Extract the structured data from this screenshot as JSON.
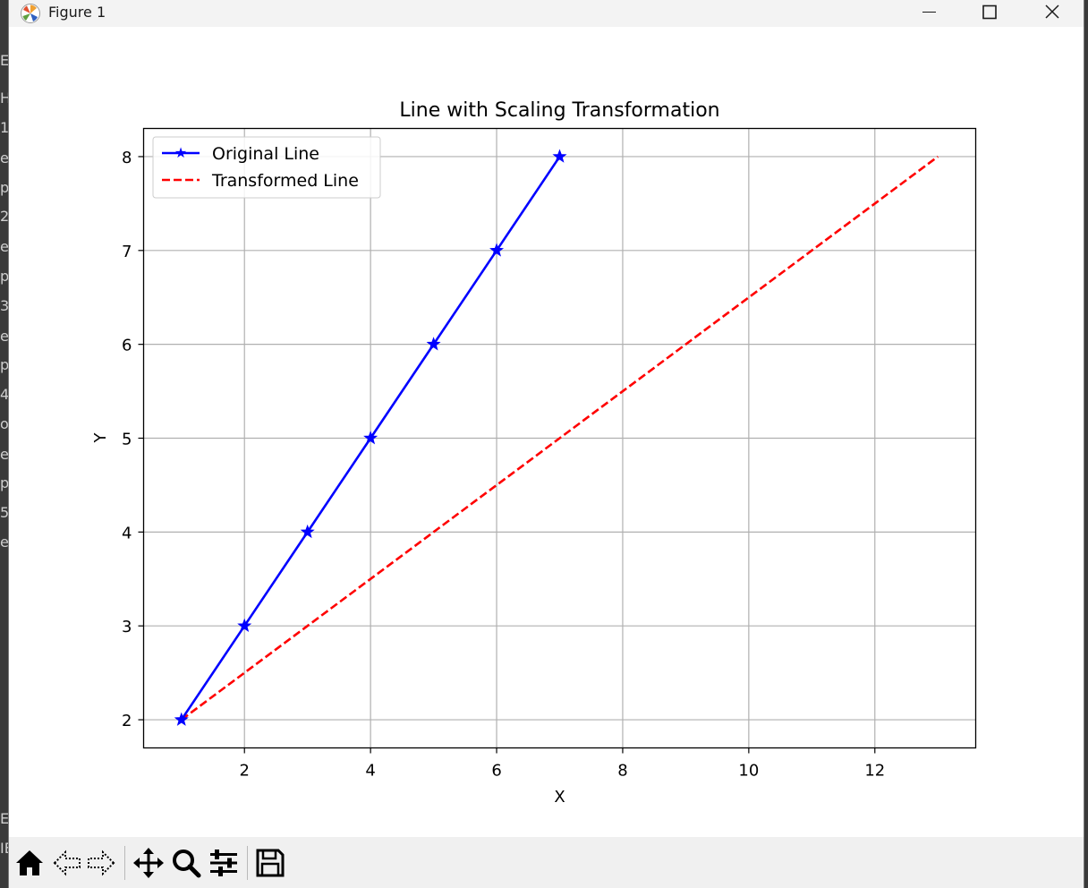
{
  "window": {
    "title": "Figure 1",
    "icon": "matplotlib-logo-icon",
    "controls": [
      "minimize-icon",
      "maximize-icon",
      "close-icon"
    ]
  },
  "background_fragments": [
    "ER",
    "H",
    "1",
    "e",
    "p",
    "2",
    "e",
    "p",
    "3",
    "e",
    "p",
    "4",
    "o",
    "e",
    "p",
    "5",
    "e",
    "E",
    "IE"
  ],
  "toolbar": {
    "buttons": [
      "home-icon",
      "back-arrow-icon",
      "forward-arrow-icon",
      "pan-move-icon",
      "zoom-magnifier-icon",
      "configure-subplots-icon",
      "save-disk-icon"
    ]
  },
  "chart_data": {
    "type": "line",
    "title": "Line with Scaling Transformation",
    "xlabel": "X",
    "ylabel": "Y",
    "xlim": [
      0.4,
      13.6
    ],
    "ylim": [
      1.7,
      8.3
    ],
    "xticks": [
      2,
      4,
      6,
      8,
      10,
      12
    ],
    "yticks": [
      2,
      3,
      4,
      5,
      6,
      7,
      8
    ],
    "grid": true,
    "legend_position": "upper left",
    "series": [
      {
        "name": "Original Line",
        "color": "#0000ff",
        "linestyle": "solid",
        "marker": "star",
        "x": [
          1,
          2,
          3,
          4,
          5,
          6,
          7
        ],
        "y": [
          2,
          3,
          4,
          5,
          6,
          7,
          8
        ]
      },
      {
        "name": "Transformed Line",
        "color": "#ff0000",
        "linestyle": "dashed",
        "marker": "none",
        "x": [
          1,
          3,
          5,
          7,
          9,
          11,
          13
        ],
        "y": [
          2,
          3,
          4,
          5,
          6,
          7,
          8
        ]
      }
    ]
  }
}
